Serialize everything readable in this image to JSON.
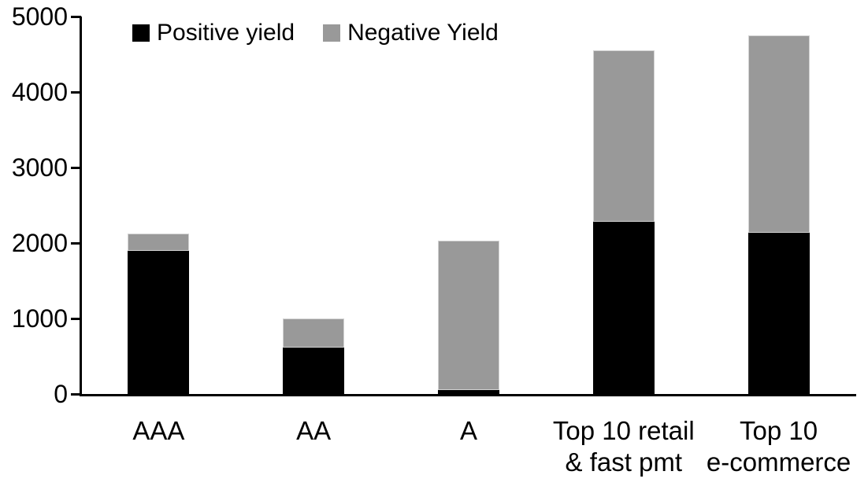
{
  "chart_data": {
    "type": "bar",
    "stacked": true,
    "title": "",
    "xlabel": "",
    "ylabel": "",
    "categories": [
      "AAA",
      "AA",
      "A",
      "Top 10 retail\n& fast pmt",
      "Top 10\ne-commerce"
    ],
    "series": [
      {
        "name": "Positive yield",
        "color": "#000000",
        "values": [
          1900,
          610,
          50,
          2280,
          2140
        ]
      },
      {
        "name": "Negative Yield",
        "color": "#999999",
        "values": [
          220,
          390,
          1980,
          2270,
          2610
        ]
      }
    ],
    "ylim": [
      0,
      5000
    ],
    "ytick_step": 1000,
    "ytick_labels": [
      "0",
      "1000",
      "2000",
      "3000",
      "4000",
      "5000"
    ],
    "legend_position": "top-left-inside",
    "grid": false,
    "axis_color": "#000000",
    "background_color": "#ffffff"
  }
}
